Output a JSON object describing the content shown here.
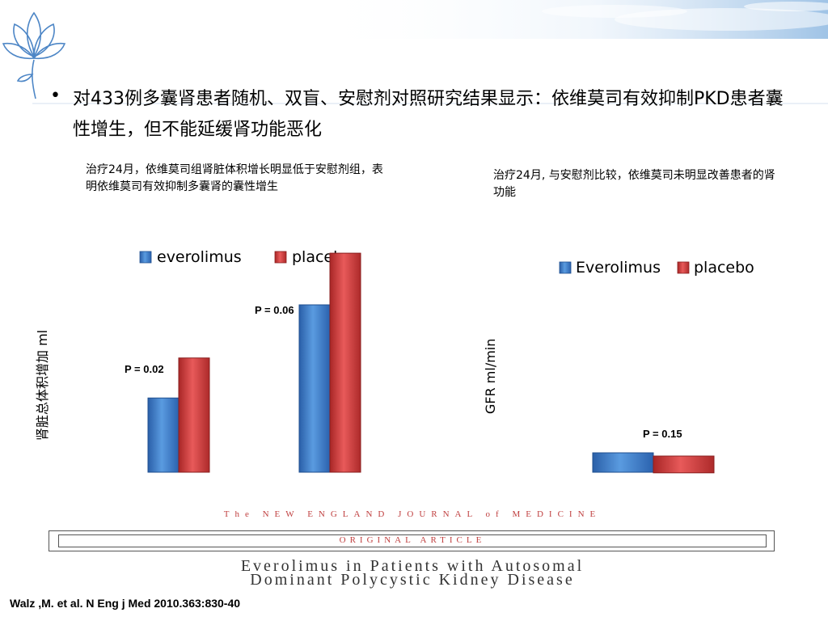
{
  "slide": {
    "bullet": "•",
    "headline": "对433例多囊肾患者随机、双盲、安慰剂对照研究结果显示：依维莫司有效抑制PKD患者囊性增生，但不能延缓肾功能恶化",
    "note_left": "治疗24月，依维莫司组肾脏体积增长明显低于安慰剂组，表明依维莫司有效抑制多囊肾的囊性增生",
    "note_right": "治疗24月, 与安慰剂比较，依维莫司未明显改善患者的肾功能",
    "nejm_masthead": "The NEW ENGLAND JOURNAL of MEDICINE",
    "article_label": "ORIGINAL ARTICLE",
    "paper_title_1": "Everolimus in Patients with Autosomal",
    "paper_title_2": "Dominant Polycystic Kidney Disease",
    "citation": "Walz ,M. et  al. N Eng j Med 2010.363:830-40"
  },
  "colors": {
    "everolimus": "#3a78c8",
    "placebo": "#d23a3a"
  },
  "chart_data": [
    {
      "type": "bar",
      "title": "",
      "ylabel": "肾脏总体积增加   ml",
      "xlabel": "",
      "categories": [
        "",
        ""
      ],
      "series": [
        {
          "name": "everolimus",
          "values": [
            102,
            230
          ]
        },
        {
          "name": "placebo",
          "values": [
            157,
            301
          ]
        }
      ],
      "ylim": [
        0,
        320
      ],
      "annotations": [
        "P = 0.02",
        "P = 0.06"
      ],
      "legend": "top",
      "grid": false
    },
    {
      "type": "bar",
      "title": "",
      "ylabel": "GFR  ml/min",
      "xlabel": "",
      "categories": [
        ""
      ],
      "series": [
        {
          "name": "Everolimus",
          "values": [
            -8.9
          ]
        },
        {
          "name": "placebo",
          "values": [
            -7.7
          ]
        }
      ],
      "ylim": [
        -10,
        0
      ],
      "annotations": [
        "P = 0.15"
      ],
      "legend": "top",
      "grid": false
    }
  ]
}
